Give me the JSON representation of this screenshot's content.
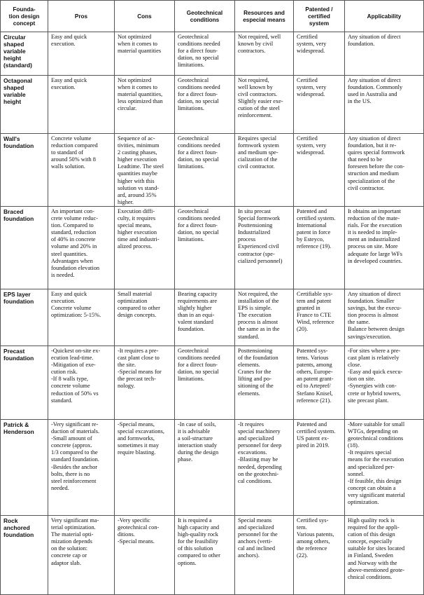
{
  "table": {
    "header": [
      [
        "Founda-",
        "tion design",
        "concept"
      ],
      [
        "Pros"
      ],
      [
        "Cons"
      ],
      [
        "Geotechnical",
        "conditions"
      ],
      [
        "Resources and",
        "especial means"
      ],
      [
        "Patented /",
        "certified",
        "system"
      ],
      [
        "Applicability"
      ]
    ],
    "rows": [
      [
        [
          "Circular",
          "shaped",
          "variable",
          "height",
          "(standard)"
        ],
        [
          "Easy and quick",
          "execution."
        ],
        [
          "Not optimized",
          "when it comes to",
          "material quantities"
        ],
        [
          "Geotechnical",
          "conditions needed",
          "for a direct foun-",
          "dation, no special",
          "limitations."
        ],
        [
          "Not required, well",
          "known by civil",
          "contractors."
        ],
        [
          "Certified",
          "system, very",
          "widespread."
        ],
        [
          "Any situation of direct",
          "foundation."
        ]
      ],
      [
        [
          "Octagonal",
          "shaped",
          "variable",
          "height"
        ],
        [
          "Easy and quick",
          "execution."
        ],
        [
          "Not optimized",
          "when it comes to",
          "material quantities,",
          "less optimized than",
          "circular."
        ],
        [
          "Geotechnical",
          "conditions needed",
          "for a direct foun-",
          "dation, no special",
          "limitations."
        ],
        [
          "Not required,",
          "well known by",
          "civil contractors.",
          "Slightly easier exe-",
          "cution of the steel",
          "reinforcement."
        ],
        [
          "Certified",
          "system, very",
          "widespread."
        ],
        [
          "Any situation of direct",
          "foundation. Commonly",
          "used in Australia and",
          "in the US."
        ]
      ],
      [
        [
          "Wall's",
          "foundation"
        ],
        [
          "Concrete volume",
          "reduction compared",
          "to standard of",
          "around 50% with 8",
          "walls solution."
        ],
        [
          "Sequence of ac-",
          "tivities, minimum",
          "2 casting phases,",
          "higher execution",
          "Leadtime. The steel",
          "quantities maybe",
          "higher with this",
          "solution vs stand-",
          "ard, around 35%",
          "higher."
        ],
        [
          "Geotechnical",
          "conditions needed",
          "for a direct foun-",
          "dation, no special",
          "limitations."
        ],
        [
          "Requires special",
          "formwork system",
          "and medium spe-",
          "cialization of the",
          "civil contractor."
        ],
        [
          "Certified",
          "system, very",
          "widespread."
        ],
        [
          "Any situation of direct",
          "foundation, but it re-",
          "quires special formwork",
          "that need to be",
          "foreseen before the con-",
          "struction and medium",
          "specialization of the",
          "civil contractor."
        ]
      ],
      [
        [
          "Braced",
          "foundation"
        ],
        [
          "An important con-",
          "crete volume reduc-",
          "tion. Compared to",
          "standard, reduction",
          "of 40% in concrete",
          "volume and 20% in",
          "steel quantities.",
          "Advantages when",
          "foundation elevation",
          "is needed."
        ],
        [
          "Execution diffi-",
          "culty, it requires",
          "special means,",
          "higher execution",
          "time and industri-",
          "alized process."
        ],
        [
          "Geotechnical",
          "conditions needed",
          "for a direct foun-",
          "dation, no special",
          "limitations."
        ],
        [
          "In situ precast",
          "Special formwork",
          "Posttensioning",
          "Industrialized",
          "process",
          "Experienced civil",
          "contractor (spe-",
          "cialized personnel)"
        ],
        [
          "Patented and",
          "certified system.",
          "International",
          "patent in force",
          "by Esteyco,",
          "reference (19)."
        ],
        [
          "It obtains an important",
          "reduction of the mate-",
          "rials. For the execution",
          "it is needed to imple-",
          "ment an industrialized",
          "process on site. More",
          "adequate for large WFs",
          "in developed countries."
        ]
      ],
      [
        [
          "EPS layer",
          "foundation"
        ],
        [
          "Easy and quick",
          "execution.",
          "Concrete volume",
          "optimization: 5-15%."
        ],
        [
          "Small material",
          "optimization",
          "compared to other",
          "design concepts."
        ],
        [
          "Bearing capacity",
          "requirements are",
          "slightly higher",
          "than in an equi-",
          "valent standard",
          "foundation."
        ],
        [
          "Not required, the",
          "installation of the",
          "EPS is simple.",
          "The execution",
          "process is almost",
          "the same as in the",
          "standard."
        ],
        [
          "Certifiable sys-",
          "tem and patent",
          "granted in",
          "France to CTE",
          "Wind, reference",
          "(20)."
        ],
        [
          "Any situation of direct",
          "foundation. Smaller",
          "savings, but the execu-",
          "tion process is almost",
          "the same.",
          "Balance between design",
          "savings/execution."
        ]
      ],
      [
        [
          "Precast",
          "foundation"
        ],
        [
          "-Quickest on-site ex-",
          "ecution lead-time.",
          "-Mitigation of exe-",
          "cution risk.",
          "-If 8 walls type,",
          "concrete volume",
          "reduction of 50% vs",
          "standard."
        ],
        [
          "-It requires a pre-",
          "cast plant close to",
          "the site.",
          "-Special means for",
          "the precast tech-",
          "nology."
        ],
        [
          "Geotechnical",
          "conditions needed",
          "for a direct foun-",
          "dation, no special",
          "limitations."
        ],
        [
          "Posttensioning",
          "of the foundation",
          "elements.",
          "Cranes for the",
          "lifting and po-",
          "sitioning of the",
          "elements."
        ],
        [
          "Patented sys-",
          "tems. Various",
          "patents, among",
          "others, Europe-",
          "an patent grant-",
          "ed to Artepref/",
          "Stefano Knisel,",
          "reference (21)."
        ],
        [
          "-For sites where a pre-",
          "cast plant is relatively",
          "close.",
          "-Easy and quick execu-",
          "tion on site.",
          "-Synergies with con-",
          "crete or hybrid towers,",
          "site precast plant."
        ]
      ],
      [
        [
          "Patrick &",
          "Henderson"
        ],
        [
          "-Very significant re-",
          "duction of materials.",
          "-Small amount of",
          "concrete (approx.",
          "1/3 compared to the",
          "standard foundation.",
          "-Besides the anchor",
          "bolts, there is no",
          "steel reinforcement",
          "needed."
        ],
        [
          "-Special means,",
          "special excavations,",
          "and formworks,",
          "sometimes it may",
          "require blasting."
        ],
        [
          "-In case of soils,",
          "it is advisable",
          "a soil-structure",
          "interaction study",
          "during the design",
          "phase."
        ],
        [
          "-It requires",
          "special machinery",
          "and specialized",
          "personnel for deep",
          "excavations.",
          "-Blasting may be",
          "needed, depending",
          "on the geotechni-",
          "cal conditions."
        ],
        [
          "Patented and",
          "certified system.",
          "US patent ex-",
          "pired in 2019."
        ],
        [
          "-More suitable for small",
          "WTGs, depending on",
          "geotechnical conditions",
          "(18).",
          "-It requires special",
          "means for the execution",
          "and specialized per-",
          "sonnel.",
          "-If feasible, this design",
          "concept can obtain a",
          "very significant material",
          "optimization."
        ]
      ],
      [
        [
          "Rock",
          "anchored",
          "foundation"
        ],
        [
          "Very significant ma-",
          "terial optimization.",
          "The material opti-",
          "mization depends",
          "on the solution:",
          "concrete cap or",
          "adaptor slab."
        ],
        [
          "-Very specific",
          "geotechnical con-",
          "ditions.",
          "-Special means."
        ],
        [
          "It is required a",
          "high capacity and",
          "high-quality rock",
          "for the feasibility",
          "of this solution",
          "compared to other",
          "options."
        ],
        [
          "Special means",
          "and specialized",
          "personnel for the",
          "anchors (verti-",
          "cal and inclined",
          "anchors)."
        ],
        [
          "Certified sys-",
          "tem.",
          "Various patents,",
          "among others,",
          "the reference",
          "(22)."
        ],
        [
          "High quality rock is",
          "required for the appli-",
          "cation of this design",
          "concept, especially",
          "suitable for sites located",
          "in Finland, Sweden",
          "and Norway with the",
          "above-mentioned geote-",
          "chnical conditions."
        ]
      ]
    ]
  }
}
